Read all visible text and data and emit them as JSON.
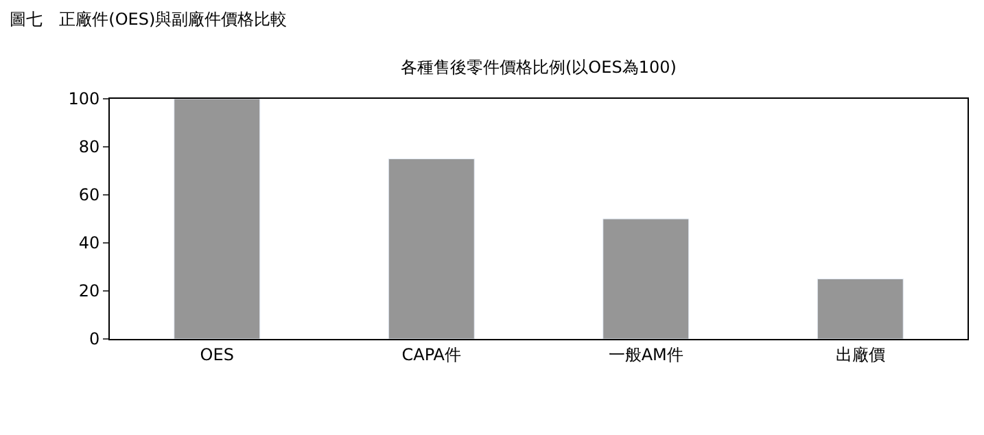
{
  "chart_data": {
    "type": "bar",
    "title": "圖七　正廠件(OES)與副廠件價格比較",
    "subtitle": "各種售後零件價格比例(以OES為100)",
    "categories": [
      "OES",
      "CAPA件",
      "一般AM件",
      "出廠價"
    ],
    "values": [
      100,
      75,
      50,
      25
    ],
    "color": "#969696",
    "ylim": [
      0,
      100
    ],
    "yticks": [
      0,
      20,
      40,
      60,
      80,
      100
    ]
  }
}
